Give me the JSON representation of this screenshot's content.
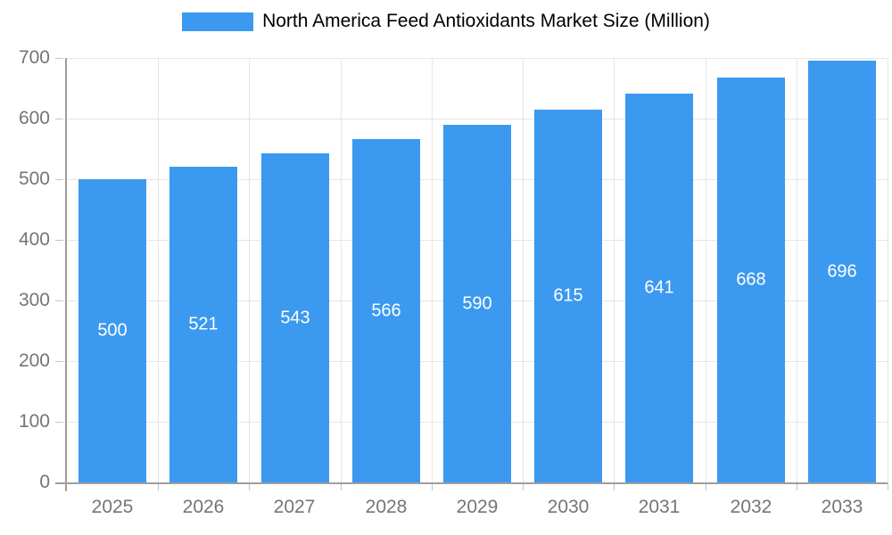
{
  "legend": {
    "items": [
      {
        "label": "North America Feed Antioxidants Market Size (Million)",
        "color": "#3b99ef"
      }
    ]
  },
  "chart_data": {
    "type": "bar",
    "categories": [
      "2025",
      "2026",
      "2027",
      "2028",
      "2029",
      "2030",
      "2031",
      "2032",
      "2033"
    ],
    "series": [
      {
        "name": "North America Feed Antioxidants Market Size (Million)",
        "values": [
          500,
          521,
          543,
          566,
          590,
          615,
          641,
          668,
          696
        ],
        "color": "#3b99ef"
      }
    ],
    "title": "",
    "xlabel": "",
    "ylabel": "",
    "ylim": [
      0,
      700
    ],
    "ytick_interval": 100,
    "yticks": [
      0,
      100,
      200,
      300,
      400,
      500,
      600,
      700
    ],
    "grid": true,
    "legend_position": "top",
    "value_labels": {
      "shown": true,
      "position": "inside-center",
      "color": "#ffffff"
    }
  },
  "colors": {
    "bar": "#3b99ef",
    "axis_line": "#9e9e9e",
    "gridline": "#e6e6e6",
    "tick": "#c4c4c4",
    "axis_text": "#757575",
    "value_text": "#ffffff",
    "background": "#ffffff"
  }
}
